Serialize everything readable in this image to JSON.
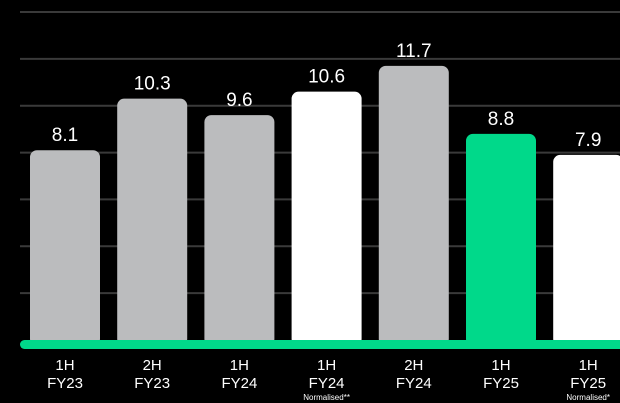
{
  "chart_data": {
    "type": "bar",
    "categories": [
      {
        "line1": "1H",
        "line2": "FY23",
        "note": ""
      },
      {
        "line1": "2H",
        "line2": "FY23",
        "note": ""
      },
      {
        "line1": "1H",
        "line2": "FY24",
        "note": ""
      },
      {
        "line1": "1H",
        "line2": "FY24",
        "note": "Normalised**"
      },
      {
        "line1": "2H",
        "line2": "FY24",
        "note": ""
      },
      {
        "line1": "1H",
        "line2": "FY25",
        "note": ""
      },
      {
        "line1": "1H",
        "line2": "FY25",
        "note": "Normalised*"
      }
    ],
    "values": [
      8.1,
      10.3,
      9.6,
      10.6,
      11.7,
      8.8,
      7.9
    ],
    "value_labels": [
      "8.1",
      "10.3",
      "9.6",
      "10.6",
      "11.7",
      "8.8",
      "7.9"
    ],
    "bar_colors": [
      "#bbbcbe",
      "#bbbcbe",
      "#bbbcbe",
      "#ffffff",
      "#bbbcbe",
      "#00d98a",
      "#ffffff"
    ],
    "axis_color": "#00d98a",
    "ylim": [
      0,
      14
    ],
    "grid": true,
    "title": "",
    "xlabel": "",
    "ylabel": ""
  }
}
